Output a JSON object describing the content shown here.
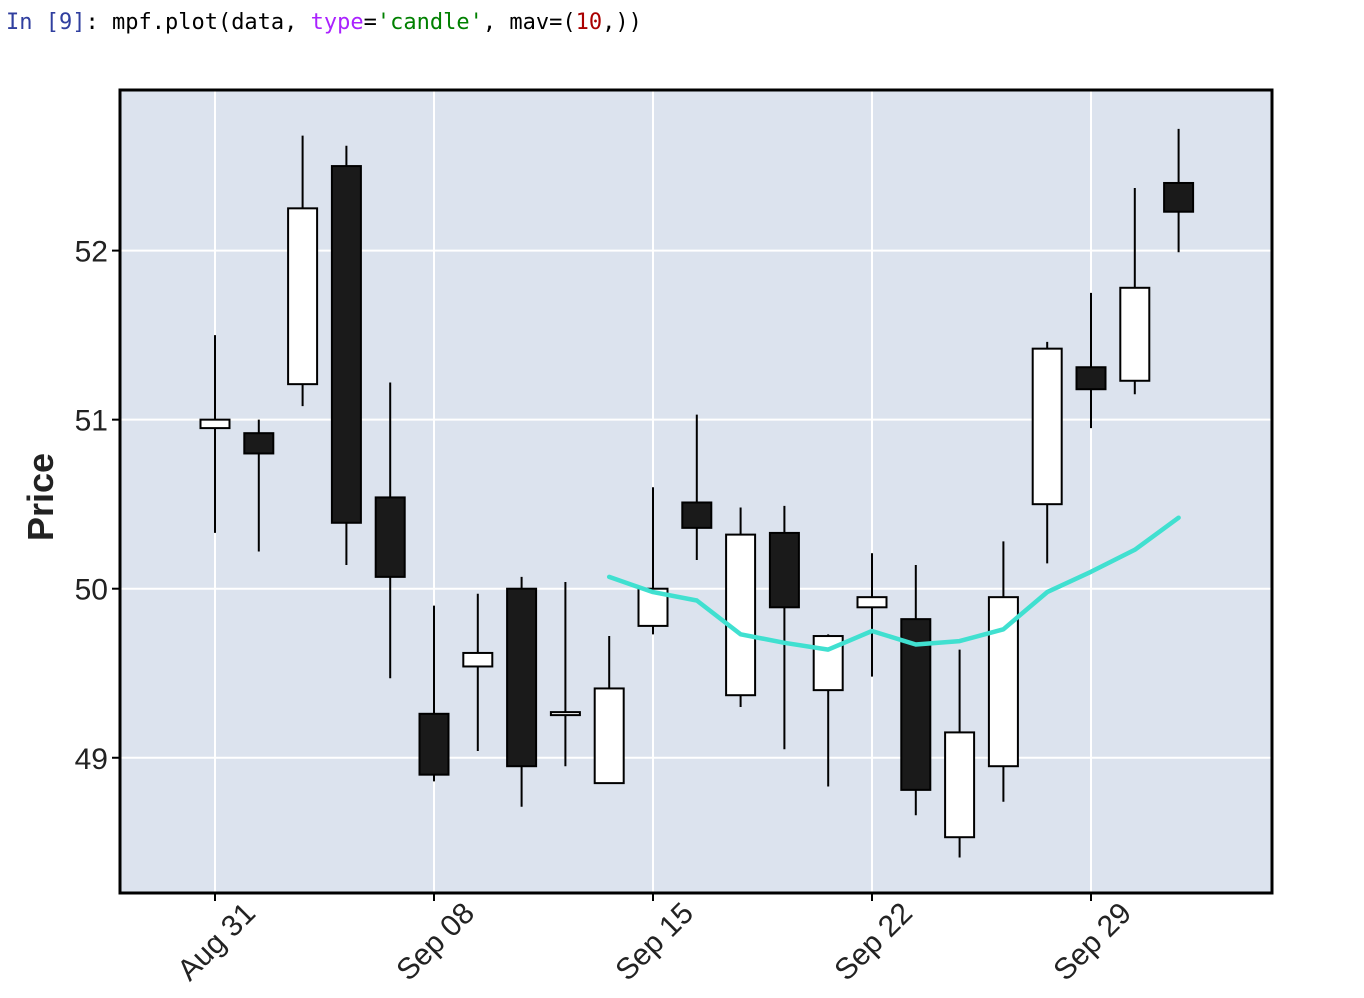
{
  "cell": {
    "prompt": "In [9]",
    "prompt_colon": ": ",
    "code_prefix": "mpf.plot(data, ",
    "code_kw": "type",
    "code_eq": "=",
    "code_str": "'candle'",
    "code_mid": ", mav=(",
    "code_num": "10",
    "code_suffix": ",))"
  },
  "chart_data": {
    "type": "candlestick",
    "ylabel": "Price",
    "ylim": [
      48.2,
      52.95
    ],
    "yticks": [
      49,
      50,
      51,
      52
    ],
    "x_tick_labels": [
      "Aug 31",
      "Sep 08",
      "Sep 15",
      "Sep 22",
      "Sep 29"
    ],
    "x_tick_indices": [
      0,
      5,
      10,
      15,
      20
    ],
    "moving_average_window": 10,
    "grid": true,
    "colors": {
      "up_body": "#ffffff",
      "down_body": "#1a1a1a",
      "wick": "#000000",
      "mav_line": "#40e0d0",
      "plot_bg": "#dce3ee",
      "grid": "#ffffff"
    },
    "candles": [
      {
        "open": 50.95,
        "high": 51.5,
        "low": 50.33,
        "close": 51.0
      },
      {
        "open": 50.92,
        "high": 51.0,
        "low": 50.22,
        "close": 50.8
      },
      {
        "open": 51.21,
        "high": 52.68,
        "low": 51.08,
        "close": 52.25
      },
      {
        "open": 52.5,
        "high": 52.62,
        "low": 50.14,
        "close": 50.39
      },
      {
        "open": 50.54,
        "high": 51.22,
        "low": 49.47,
        "close": 50.07
      },
      {
        "open": 49.26,
        "high": 49.9,
        "low": 48.86,
        "close": 48.9
      },
      {
        "open": 49.54,
        "high": 49.97,
        "low": 49.04,
        "close": 49.62
      },
      {
        "open": 50.0,
        "high": 50.07,
        "low": 48.71,
        "close": 48.95
      },
      {
        "open": 49.26,
        "high": 50.04,
        "low": 48.95,
        "close": 49.27
      },
      {
        "open": 48.85,
        "high": 49.72,
        "low": 48.85,
        "close": 49.41
      },
      {
        "open": 49.78,
        "high": 50.6,
        "low": 49.73,
        "close": 50.0
      },
      {
        "open": 50.51,
        "high": 51.03,
        "low": 50.17,
        "close": 50.36
      },
      {
        "open": 49.37,
        "high": 50.48,
        "low": 49.3,
        "close": 50.32
      },
      {
        "open": 50.33,
        "high": 50.49,
        "low": 49.05,
        "close": 49.89
      },
      {
        "open": 49.4,
        "high": 49.73,
        "low": 48.83,
        "close": 49.72
      },
      {
        "open": 49.89,
        "high": 50.21,
        "low": 49.48,
        "close": 49.95
      },
      {
        "open": 49.82,
        "high": 50.14,
        "low": 48.66,
        "close": 48.81
      },
      {
        "open": 48.53,
        "high": 49.64,
        "low": 48.41,
        "close": 49.15
      },
      {
        "open": 48.95,
        "high": 50.28,
        "low": 48.74,
        "close": 49.95
      },
      {
        "open": 50.5,
        "high": 51.46,
        "low": 50.15,
        "close": 51.42
      },
      {
        "open": 51.31,
        "high": 51.75,
        "low": 50.95,
        "close": 51.18
      },
      {
        "open": 51.23,
        "high": 52.37,
        "low": 51.15,
        "close": 51.78
      },
      {
        "open": 52.4,
        "high": 52.72,
        "low": 51.99,
        "close": 52.23
      }
    ],
    "mav_values": [
      null,
      null,
      null,
      null,
      null,
      null,
      null,
      null,
      null,
      50.07,
      49.98,
      49.93,
      49.73,
      49.68,
      49.64,
      49.75,
      49.67,
      49.69,
      49.76,
      49.98,
      50.1,
      50.23,
      50.42
    ]
  }
}
